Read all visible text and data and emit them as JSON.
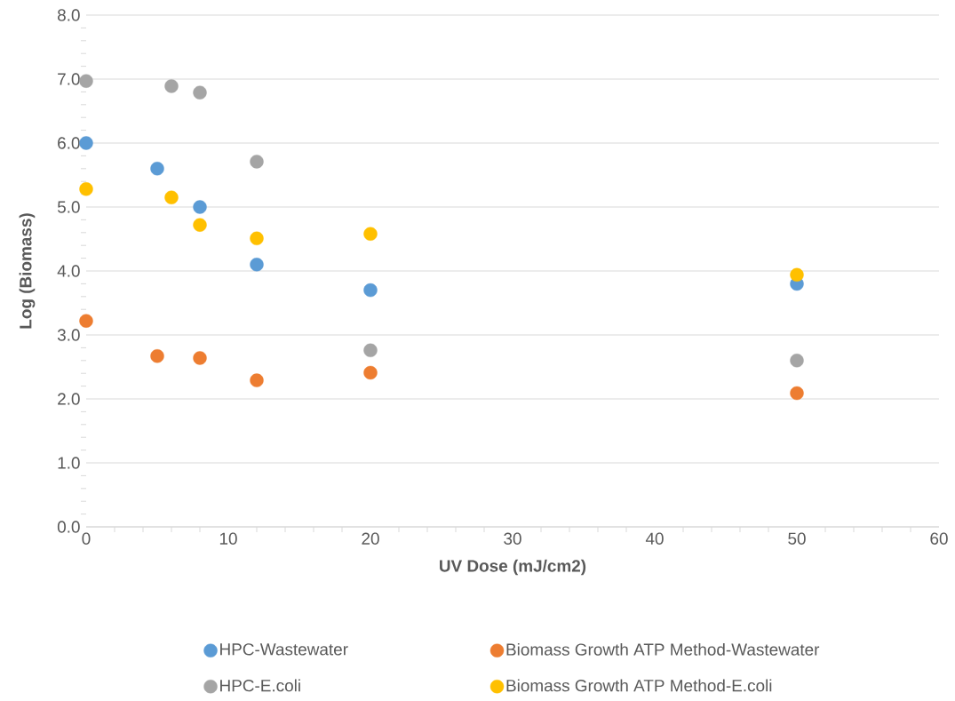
{
  "chart_data": {
    "type": "scatter",
    "xlabel": "UV Dose (mJ/cm2)",
    "ylabel": "Log (Biomass)",
    "series": [
      {
        "name": "HPC-Wastewater",
        "color": "#5b9bd5",
        "x": [
          0,
          5,
          8,
          12,
          20,
          50
        ],
        "values": [
          6.0,
          5.6,
          5.0,
          4.1,
          3.7,
          3.8
        ]
      },
      {
        "name": "Biomass Growth ATP Method-Wastewater",
        "color": "#ed7d31",
        "x": [
          0,
          5,
          8,
          12,
          20,
          50
        ],
        "values": [
          3.22,
          2.67,
          2.64,
          2.29,
          2.41,
          2.09
        ]
      },
      {
        "name": "HPC-E.coli",
        "color": "#a5a5a5",
        "x": [
          0,
          6,
          8,
          12,
          20,
          50
        ],
        "values": [
          6.97,
          6.89,
          6.79,
          5.71,
          2.76,
          2.6
        ]
      },
      {
        "name": "Biomass Growth ATP Method-E.coli",
        "color": "#ffc000",
        "x": [
          0,
          6,
          8,
          12,
          20,
          50
        ],
        "values": [
          5.28,
          5.15,
          4.72,
          4.51,
          4.58,
          3.94
        ]
      }
    ],
    "xlim": [
      0,
      60
    ],
    "xticks": [
      0,
      10,
      20,
      30,
      40,
      50,
      60
    ],
    "ylim": [
      0,
      8
    ],
    "yticks": [
      {
        "value": 0,
        "label": "0.0"
      },
      {
        "value": 1,
        "label": "1.0"
      },
      {
        "value": 2,
        "label": "2.0"
      },
      {
        "value": 3,
        "label": "3.0"
      },
      {
        "value": 4,
        "label": "4.0"
      },
      {
        "value": 5,
        "label": "5.0"
      },
      {
        "value": 6,
        "label": "6.0"
      },
      {
        "value": 7,
        "label": "7.0"
      },
      {
        "value": 8,
        "label": "8.0"
      }
    ],
    "grid": "y",
    "legend": "bottom"
  }
}
